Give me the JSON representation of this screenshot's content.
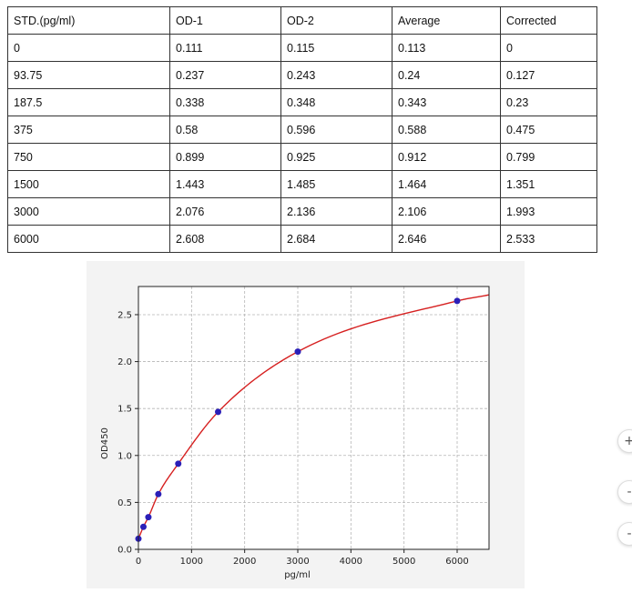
{
  "table": {
    "headers": [
      "STD.(pg/ml)",
      "OD-1",
      "OD-2",
      "Average",
      "Corrected"
    ],
    "rows": [
      [
        "0",
        "0.111",
        "0.115",
        "0.113",
        "0"
      ],
      [
        "93.75",
        "0.237",
        "0.243",
        "0.24",
        "0.127"
      ],
      [
        "187.5",
        "0.338",
        "0.348",
        "0.343",
        "0.23"
      ],
      [
        "375",
        "0.58",
        "0.596",
        "0.588",
        "0.475"
      ],
      [
        "750",
        "0.899",
        "0.925",
        "0.912",
        "0.799"
      ],
      [
        "1500",
        "1.443",
        "1.485",
        "1.464",
        "1.351"
      ],
      [
        "3000",
        "2.076",
        "2.136",
        "2.106",
        "1.993"
      ],
      [
        "6000",
        "2.608",
        "2.684",
        "2.646",
        "2.533"
      ]
    ]
  },
  "chart_data": {
    "type": "scatter",
    "xlabel": "pg/ml",
    "ylabel": "OD450",
    "xlim": [
      0,
      6600
    ],
    "ylim": [
      0,
      2.8
    ],
    "xticks": [
      0,
      1000,
      2000,
      3000,
      4000,
      5000,
      6000
    ],
    "yticks": [
      0.0,
      0.5,
      1.0,
      1.5,
      2.0,
      2.5
    ],
    "ytick_labels": [
      "0.0",
      "0.5",
      "1.0",
      "1.5",
      "2.0",
      "2.5"
    ],
    "grid": true,
    "points": {
      "x": [
        0,
        93.75,
        187.5,
        375,
        750,
        1500,
        3000,
        6000
      ],
      "y": [
        0.113,
        0.24,
        0.343,
        0.588,
        0.912,
        1.464,
        2.106,
        2.646
      ],
      "color": "#2a1fb8"
    },
    "fit_color": "#d62020"
  },
  "zoom_controls": [
    "+",
    "-",
    "-"
  ]
}
